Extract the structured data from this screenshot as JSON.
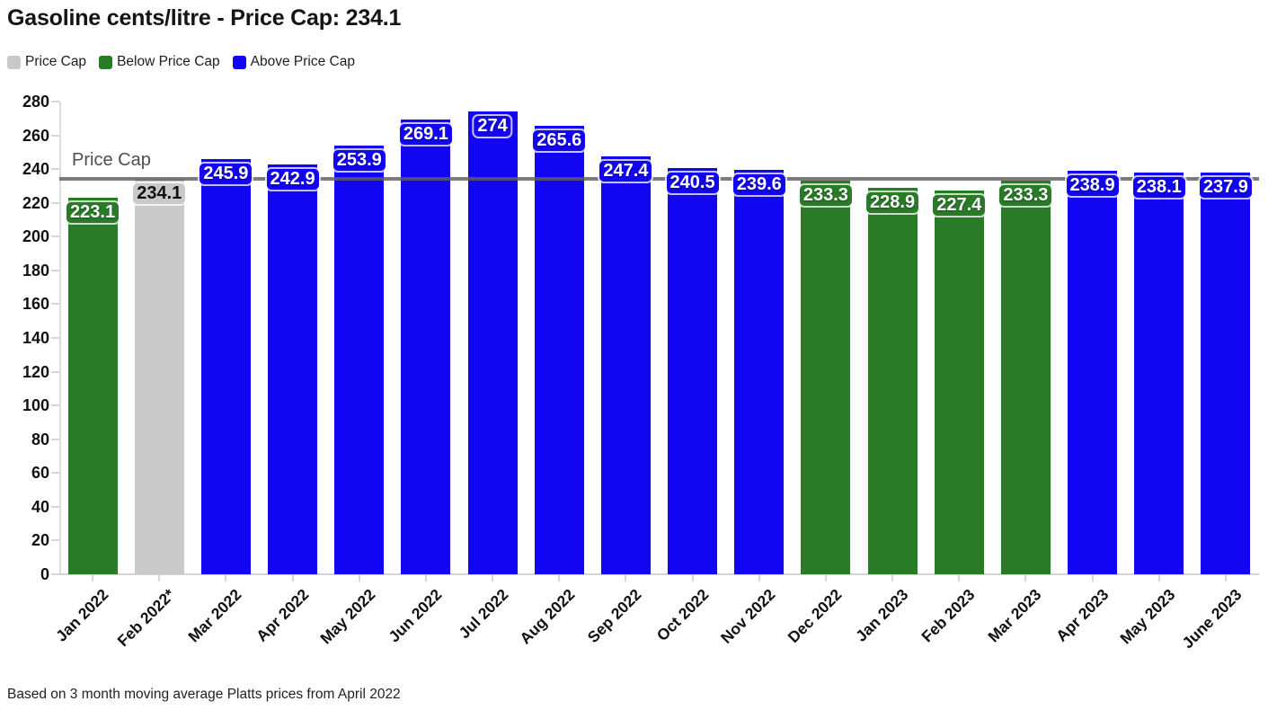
{
  "header": {
    "title": "Gasoline cents/litre - Price Cap: 234.1"
  },
  "legend": {
    "items": [
      {
        "label": "Price Cap",
        "status": "cap"
      },
      {
        "label": "Below Price Cap",
        "status": "below"
      },
      {
        "label": "Above Price Cap",
        "status": "above"
      }
    ]
  },
  "colors": {
    "below": "#2a7b28",
    "above": "#1205f2",
    "cap": "#c9c9c9",
    "cap_line": "rgba(94,94,94,0.82)",
    "axis": "#d6d6d6"
  },
  "chart_data": {
    "type": "bar",
    "title": "Gasoline cents/litre - Price Cap: 234.1",
    "categories": [
      "Jan 2022",
      "Feb 2022*",
      "Mar 2022",
      "Apr 2022",
      "May 2022",
      "Jun 2022",
      "Jul 2022",
      "Aug 2022",
      "Sep 2022",
      "Oct 2022",
      "Nov 2022",
      "Dec 2022",
      "Jan 2023",
      "Feb 2023",
      "Mar 2023",
      "Apr 2023",
      "May 2023",
      "June 2023"
    ],
    "values": [
      223.1,
      234.1,
      245.9,
      242.9,
      253.9,
      269.1,
      274,
      265.6,
      247.4,
      240.5,
      239.6,
      233.3,
      228.9,
      227.4,
      233.3,
      238.9,
      238.1,
      237.9
    ],
    "statuses": [
      "below",
      "cap",
      "above",
      "above",
      "above",
      "above",
      "above",
      "above",
      "above",
      "above",
      "above",
      "below",
      "below",
      "below",
      "below",
      "above",
      "above",
      "above"
    ],
    "price_cap": 234.1,
    "cap_line_label": "Price Cap",
    "xlabel": "",
    "ylabel": "",
    "ylim": [
      0,
      280
    ],
    "ytick_step": 20,
    "grid": "off",
    "legend_position": "top-left"
  },
  "footer": {
    "note": "Based on 3 month moving average Platts prices from April 2022"
  }
}
